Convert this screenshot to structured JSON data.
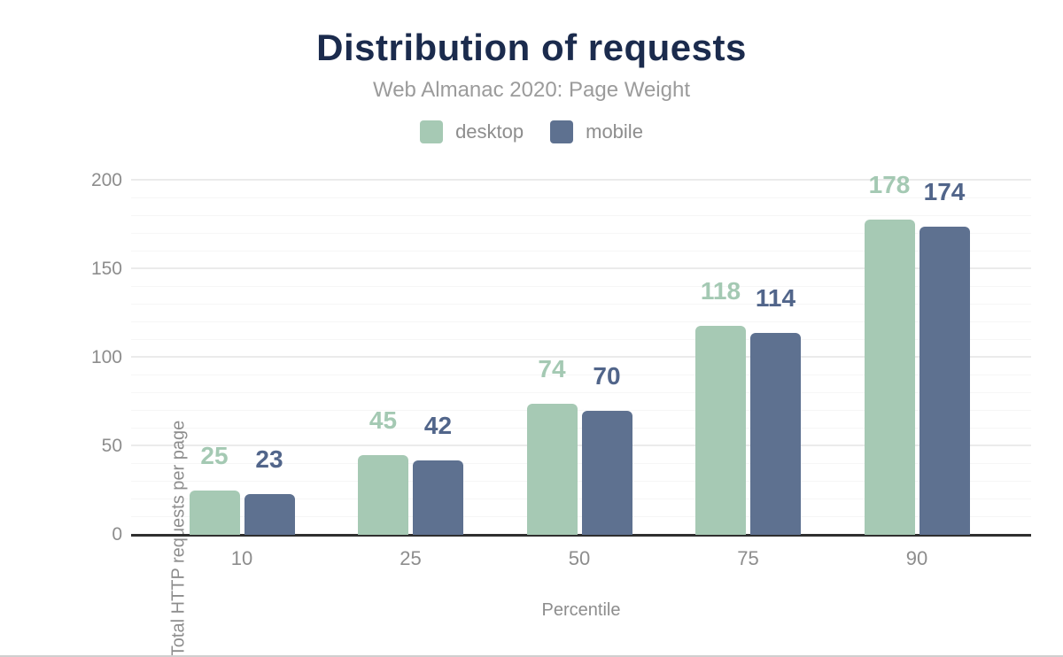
{
  "colors": {
    "title": "#1b2b4d",
    "subtitle": "#9b9b9b",
    "axis_text": "#8d8d8d",
    "axis_line": "#2f2f2f",
    "grid_major": "#ebebeb",
    "grid_minor": "#f6f6f6",
    "desktop": "#a6c9b4",
    "mobile": "#5e7190",
    "desktop_label": "#a4c9b3",
    "mobile_label": "#51658a"
  },
  "chart_data": {
    "type": "bar",
    "title": "Distribution of requests",
    "subtitle": "Web Almanac 2020: Page Weight",
    "categories": [
      "10",
      "25",
      "50",
      "75",
      "90"
    ],
    "series": [
      {
        "name": "desktop",
        "color": "#a6c9b4",
        "label_color": "#a4c9b3",
        "values": [
          25,
          45,
          74,
          118,
          178
        ]
      },
      {
        "name": "mobile",
        "color": "#5e7190",
        "label_color": "#51658a",
        "values": [
          23,
          42,
          70,
          114,
          174
        ]
      }
    ],
    "xlabel": "Percentile",
    "ylabel": "Total HTTP requests per page",
    "ylim": [
      0,
      200
    ],
    "yticks": [
      0,
      50,
      100,
      150,
      200
    ],
    "minor_grid_step": 10,
    "major_grid_step": 50,
    "grid": true,
    "legend_position": "top",
    "data_labels": true
  }
}
